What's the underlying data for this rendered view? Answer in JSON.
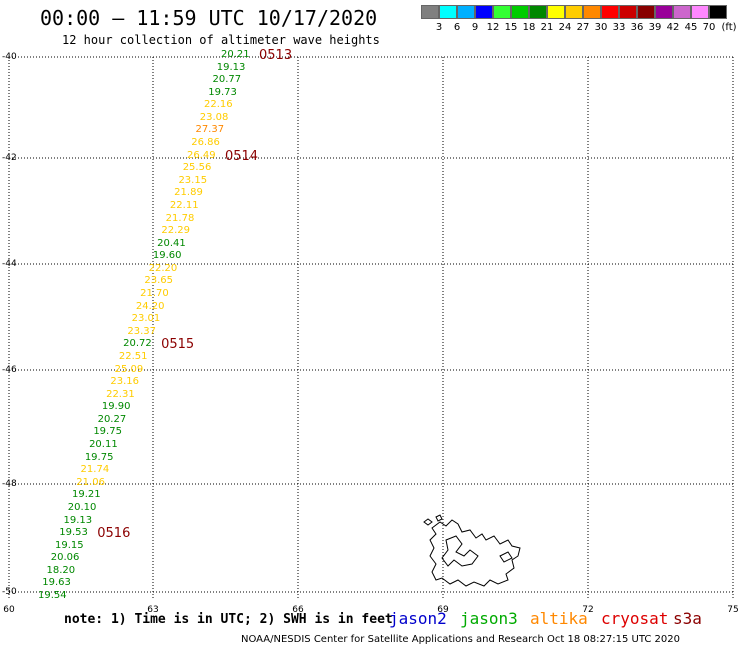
{
  "header": {
    "title": "00:00 – 11:59 UTC 10/17/2020",
    "subtitle": "12 hour collection of altimeter wave heights"
  },
  "colorbar": {
    "unit": "(ft)",
    "labels": [
      "3",
      "6",
      "9",
      "12",
      "15",
      "18",
      "21",
      "24",
      "27",
      "30",
      "33",
      "36",
      "39",
      "42",
      "45",
      "70"
    ],
    "colors": [
      "#808080",
      "#00ffff",
      "#00b0ff",
      "#0000ff",
      "#33ff33",
      "#00cc00",
      "#008800",
      "#ffff00",
      "#ffcc00",
      "#ff8800",
      "#ff0000",
      "#cc0000",
      "#880000",
      "#990099",
      "#cc66cc",
      "#ff88ff",
      "#000000"
    ]
  },
  "axes": {
    "lat_labels": [
      "-40",
      "-42",
      "-44",
      "-46",
      "-48",
      "-50"
    ],
    "lon_labels": [
      "60",
      "63",
      "66",
      "69",
      "72",
      "75"
    ]
  },
  "track": {
    "points": [
      {
        "value": "20.21",
        "color": "#008800"
      },
      {
        "value": "19.13",
        "color": "#008800"
      },
      {
        "value": "20.77",
        "color": "#008800"
      },
      {
        "value": "19.73",
        "color": "#008800"
      },
      {
        "value": "22.16",
        "color": "#ffcc00"
      },
      {
        "value": "23.08",
        "color": "#ffcc00"
      },
      {
        "value": "27.37",
        "color": "#ff8800"
      },
      {
        "value": "26.86",
        "color": "#ffcc00"
      },
      {
        "value": "26.49",
        "color": "#ffcc00"
      },
      {
        "value": "25.56",
        "color": "#ffcc00"
      },
      {
        "value": "23.15",
        "color": "#ffcc00"
      },
      {
        "value": "21.89",
        "color": "#ffcc00"
      },
      {
        "value": "22.11",
        "color": "#ffcc00"
      },
      {
        "value": "21.78",
        "color": "#ffcc00"
      },
      {
        "value": "22.29",
        "color": "#ffcc00"
      },
      {
        "value": "20.41",
        "color": "#008800"
      },
      {
        "value": "19.60",
        "color": "#008800"
      },
      {
        "value": "22.20",
        "color": "#ffcc00"
      },
      {
        "value": "23.65",
        "color": "#ffcc00"
      },
      {
        "value": "21.70",
        "color": "#ffcc00"
      },
      {
        "value": "24.20",
        "color": "#ffcc00"
      },
      {
        "value": "23.01",
        "color": "#ffcc00"
      },
      {
        "value": "23.37",
        "color": "#ffcc00"
      },
      {
        "value": "20.72",
        "color": "#008800"
      },
      {
        "value": "22.51",
        "color": "#ffcc00"
      },
      {
        "value": "25.09",
        "color": "#ffcc00"
      },
      {
        "value": "23.16",
        "color": "#ffcc00"
      },
      {
        "value": "22.31",
        "color": "#ffcc00"
      },
      {
        "value": "19.90",
        "color": "#008800"
      },
      {
        "value": "20.27",
        "color": "#008800"
      },
      {
        "value": "19.75",
        "color": "#008800"
      },
      {
        "value": "20.11",
        "color": "#008800"
      },
      {
        "value": "19.75",
        "color": "#008800"
      },
      {
        "value": "21.74",
        "color": "#ffcc00"
      },
      {
        "value": "21.06",
        "color": "#ffcc00"
      },
      {
        "value": "19.21",
        "color": "#008800"
      },
      {
        "value": "20.10",
        "color": "#008800"
      },
      {
        "value": "19.13",
        "color": "#008800"
      },
      {
        "value": "19.53",
        "color": "#008800"
      },
      {
        "value": "19.15",
        "color": "#008800"
      },
      {
        "value": "20.06",
        "color": "#008800"
      },
      {
        "value": "18.20",
        "color": "#008800"
      },
      {
        "value": "19.63",
        "color": "#008800"
      },
      {
        "value": "19.54",
        "color": "#008800"
      }
    ],
    "time_labels": [
      "0513",
      "0514",
      "0515",
      "0516"
    ]
  },
  "footer": {
    "note": "note: 1) Time is in UTC; 2) SWH is in feet",
    "satellites": [
      {
        "name": "jason2",
        "color": "#0000cc"
      },
      {
        "name": "jason3",
        "color": "#00aa00"
      },
      {
        "name": "altika",
        "color": "#ff8800"
      },
      {
        "name": "cryosat",
        "color": "#dd0000"
      },
      {
        "name": "s3a",
        "color": "#8b0000"
      }
    ],
    "credit": "NOAA/NESDIS Center for Satellite Applications and Research     Oct 18 08:27:15 UTC 2020"
  }
}
